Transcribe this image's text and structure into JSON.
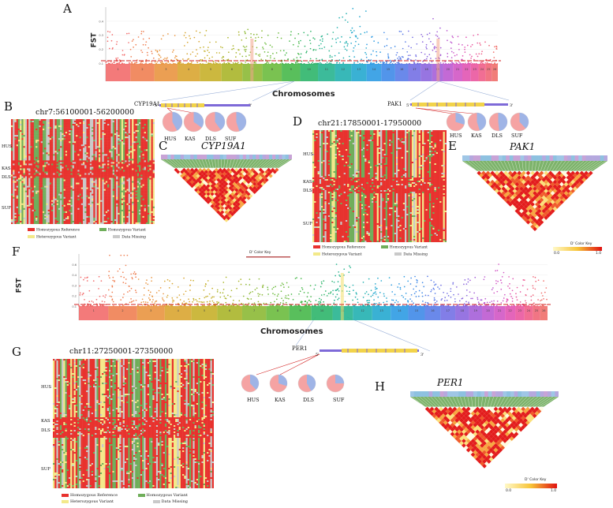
{
  "figure": {
    "panels": {
      "A": "A",
      "B": "B",
      "C": "C",
      "D": "D",
      "E": "E",
      "F": "F",
      "G": "G",
      "H": "H"
    }
  },
  "manhattan_top": {
    "ylabel": "FST",
    "xlabel": "Chromosomes",
    "yticks": [
      "0.4",
      "0.3",
      "0.2",
      "0.1"
    ],
    "chromosomes": [
      "1",
      "2",
      "3",
      "4",
      "5",
      "6",
      "7",
      "8",
      "9",
      "10",
      "11",
      "12",
      "13",
      "14",
      "15",
      "16",
      "17",
      "18",
      "19",
      "20",
      "21",
      "22",
      "23",
      "24",
      "25",
      "26"
    ],
    "gene_left": {
      "name": "CYP19A1",
      "five": "5'",
      "three": "3'"
    },
    "gene_right": {
      "name": "PAK1",
      "five": "5'",
      "three": "3'"
    }
  },
  "manhattan_bottom": {
    "ylabel": "FST",
    "xlabel": "Chromosomes",
    "yticks": [
      "0.6",
      "0.4",
      "0.3",
      "0.2",
      "0.1"
    ],
    "chromosomes": [
      "1",
      "2",
      "3",
      "4",
      "5",
      "6",
      "7",
      "8",
      "9",
      "10",
      "11",
      "12",
      "13",
      "14",
      "15",
      "16",
      "17",
      "18",
      "19",
      "20",
      "21",
      "22",
      "23",
      "24",
      "25",
      "26"
    ],
    "gene": {
      "name": "PER1",
      "five": "5'",
      "three": "3'"
    }
  },
  "populations": [
    "HUS",
    "KAS",
    "DLS",
    "SUF"
  ],
  "heatmap_B": {
    "title": "chr7:56100001-56200000",
    "groups": [
      "HUS",
      "KAS",
      "DLS",
      "SUF"
    ]
  },
  "heatmap_D": {
    "title": "chr21:17850001-17950000",
    "groups": [
      "HUS",
      "KAS",
      "DLS",
      "SUF"
    ]
  },
  "heatmap_G": {
    "title": "chr11:27250001-27350000",
    "groups": [
      "HUS",
      "KAS",
      "DLS",
      "SUF"
    ]
  },
  "ld_C": {
    "title": "CYP19A1",
    "key": "D' Color Key"
  },
  "ld_E": {
    "title": "PAK1",
    "key": "D' Color Key",
    "min": "0.0",
    "max": "1.0"
  },
  "ld_H": {
    "title": "PER1",
    "key": "D' Color Key",
    "min": "0.0",
    "max": "1.0"
  },
  "legend": {
    "hom_ref": "Homozygous Reference",
    "hom_var": "Homozygous Variant",
    "het_var": "Heterozygous Variant",
    "missing": "Data Missing"
  },
  "colors": {
    "hom_ref": "#e8322e",
    "hom_var": "#6fae5a",
    "het_var": "#f3e98a",
    "missing": "#c9c9c9",
    "threshold": "#d21f1f",
    "pie_pink": "#f5a3a3",
    "pie_blue": "#9fb4e6"
  }
}
